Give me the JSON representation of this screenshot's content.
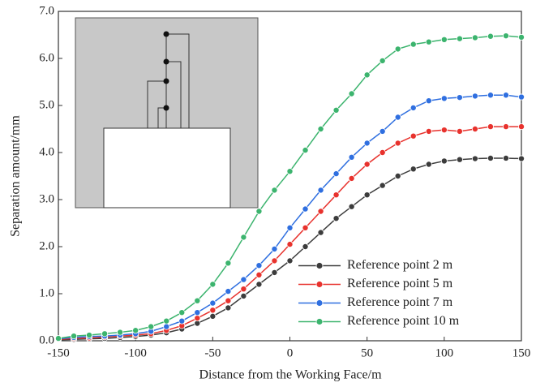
{
  "chart_data": {
    "type": "line",
    "xlabel": "Distance from the Working Face/m",
    "ylabel": "Separation amount/mm",
    "x": [
      -150,
      -140,
      -130,
      -120,
      -110,
      -100,
      -90,
      -80,
      -70,
      -60,
      -50,
      -40,
      -30,
      -20,
      -10,
      0,
      10,
      20,
      30,
      40,
      50,
      60,
      70,
      80,
      90,
      100,
      110,
      120,
      130,
      140,
      150
    ],
    "series": [
      {
        "name": "Reference point 2 m",
        "color": "#3c3c3c",
        "values": [
          0.02,
          0.03,
          0.04,
          0.05,
          0.07,
          0.09,
          0.12,
          0.17,
          0.25,
          0.37,
          0.52,
          0.7,
          0.95,
          1.2,
          1.45,
          1.7,
          2.0,
          2.3,
          2.6,
          2.85,
          3.1,
          3.3,
          3.5,
          3.65,
          3.75,
          3.82,
          3.85,
          3.87,
          3.88,
          3.88,
          3.87
        ]
      },
      {
        "name": "Reference point 5 m",
        "color": "#e8322d",
        "values": [
          0.03,
          0.05,
          0.06,
          0.08,
          0.1,
          0.12,
          0.15,
          0.22,
          0.32,
          0.48,
          0.65,
          0.85,
          1.1,
          1.4,
          1.7,
          2.05,
          2.4,
          2.75,
          3.1,
          3.45,
          3.75,
          4.0,
          4.2,
          4.35,
          4.45,
          4.48,
          4.45,
          4.5,
          4.55,
          4.55,
          4.55
        ]
      },
      {
        "name": "Reference point 7 m",
        "color": "#2f6fe0",
        "values": [
          0.04,
          0.07,
          0.09,
          0.1,
          0.12,
          0.15,
          0.2,
          0.3,
          0.42,
          0.6,
          0.8,
          1.05,
          1.3,
          1.6,
          1.95,
          2.4,
          2.8,
          3.2,
          3.55,
          3.9,
          4.2,
          4.45,
          4.75,
          4.95,
          5.1,
          5.15,
          5.17,
          5.2,
          5.22,
          5.22,
          5.18
        ]
      },
      {
        "name": "Reference point 10 m",
        "color": "#3cb46e",
        "values": [
          0.05,
          0.1,
          0.12,
          0.15,
          0.18,
          0.22,
          0.3,
          0.42,
          0.6,
          0.85,
          1.2,
          1.65,
          2.2,
          2.75,
          3.2,
          3.6,
          4.05,
          4.5,
          4.9,
          5.25,
          5.65,
          5.95,
          6.2,
          6.3,
          6.35,
          6.4,
          6.42,
          6.44,
          6.47,
          6.48,
          6.45
        ]
      }
    ],
    "xlim": [
      -150,
      150
    ],
    "xticks": [
      -150,
      -100,
      -50,
      0,
      50,
      100,
      150
    ],
    "ylim": [
      0,
      7
    ],
    "yticks": [
      {
        "value": 0,
        "label": "0.0"
      },
      {
        "value": 1,
        "label": "1.0"
      },
      {
        "value": 2,
        "label": "2.0"
      },
      {
        "value": 3,
        "label": "3.0"
      },
      {
        "value": 4,
        "label": "4.0"
      },
      {
        "value": 5,
        "label": "5.0"
      },
      {
        "value": 6,
        "label": "6.0"
      },
      {
        "value": 7,
        "label": "7.0"
      }
    ],
    "legend": "lower right"
  }
}
